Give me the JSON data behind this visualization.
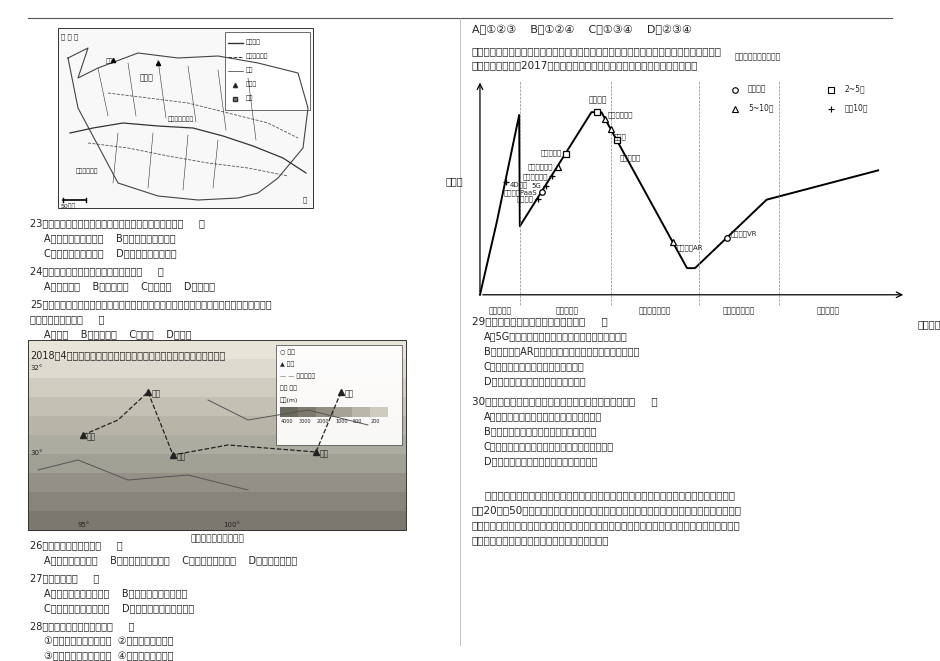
{
  "page_bg": "#f5f5f0",
  "top_border_color": "#333333",
  "text_color": "#222222",
  "answer_row": "A．①②③    B．①②④    C．①③④    D．②③④",
  "right_intro1": "技术成熟度曲线是通过技术发展阶段和公众期望值等指标来评价新技术的一种工具。下图为",
  "right_intro2": "某咨询公司发布的2017年中国新兴技术成熟度曲线。读下图，回答下面各题。",
  "chart_ylabel": "期望值",
  "chart_xlabel": "发展阶段",
  "chart_legend_title": "到达成熟期需要的年限",
  "x_axis_labels": [
    "技术萌芽期",
    "期望膨胀期",
    "泡沫破裂低谷期",
    "稳步爬升恢复期",
    "生产成熟期"
  ],
  "q23_text": "23．无定河流经风沙区的河段，与丘陵沟壑区河段相比（     ）",
  "q23_A": "A．含沙量大，水量大    B．含沙量大，水量小",
  "q23_C": "C．含沙量小，水量大    D．含沙量小，水量小",
  "q24_text": "24．无定河上游地区的水源补给主要是（     ）",
  "q24_A": "A．大气降水    B．冰川融水    C．地下水    D．湖泊水",
  "q25_text": "25．针对黄土丘陵沟壑区的主要生态环境问题，无定河很多支流修建了一些小型水库，这些",
  "q25_text2": "水库的突出作用是（     ）",
  "q25_A": "A．防洪    B．拦蓄泥沙    C．灌溉    D．发电",
  "q26_intro": "2018年4月，川藏铁路成都至雅安段开始铺轨。读图，回答下列小题。",
  "q26_text": "26．与成都相比，拉萨（     ）",
  "q26_A": "A．日出早，白昼长    B．正午太阳高度角小    C．海拔高，目照强    D．大气逆辐射强",
  "q27_text": "27．图示区域（     ）",
  "q27_A": "A．地处板块的生长边界    B．河流的流向自西向东",
  "q27_C": "C．自然景观为高寒荒漠    D．跨地势第一、二级阶梯",
  "q28_text": "28．川藏铁路开通后，能够（     ）",
  "q28_1": "①缓解青藏铁路运输压力  ②改善西藏物资供应",
  "q28_2": "③消除区域内灾害的影响  ④促进地域文化交流",
  "q29_text": "29．关于图中信息的解读，正确的是（     ）",
  "q29_A": "A．5G技术可能比自动驾驶技术更早进入生产成熟期",
  "q29_B": "B．增强现实AR已经进入泡沫破裂期，该技术将停止发展",
  "q29_C": "C．目前区块链技术的期望值持续提高",
  "q29_D": "D．机器学习期望值高，生产企业最多",
  "q30_text": "30．下列关于中国发展新兴技术产业的说法，正确的是（     ）",
  "q30_A": "A．研发机构多分布于东部风景优美的小城镇",
  "q30_B": "B．该类企业普遍为了降低能源消耗而聚集",
  "q30_C": "C．应立足于引进新兴技术增强我国的国际竞争力",
  "q30_D": "D．快速发展有利于促进我国产业结构调整",
  "right_bottom_text1": "    分布于我国东北平原的黑土有机质含量多，保肥、保水性强，是最适宜农作物生长的肥沃土",
  "right_bottom_text2": "壤。20世纪50年代以来，黑土逐渐发展成为我国的商品粮基地。近年来黑土厚度变薄，肥力下",
  "right_bottom_text3": "降，引起生态环境恶化，严重影响农业的可持续发展。下左图示意东北平原黑土的分布，下右图示",
  "right_bottom_text4": "意东北平原黑土厚度的变化。据此完成下面各题。"
}
